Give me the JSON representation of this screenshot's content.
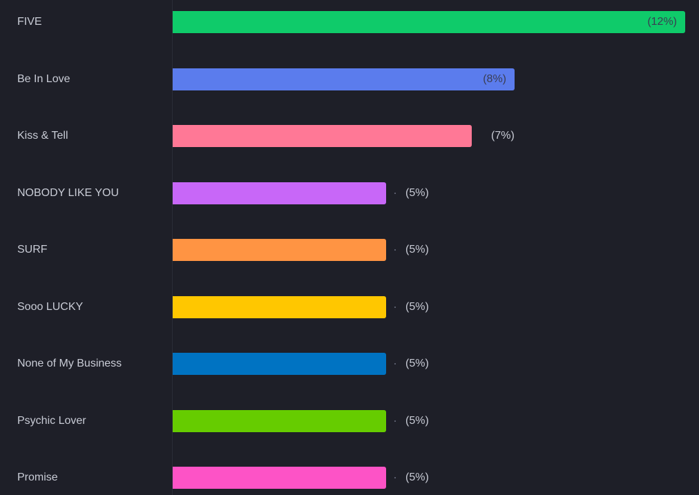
{
  "chart_data": {
    "type": "bar",
    "orientation": "horizontal",
    "categories": [
      "FIVE",
      "Be In Love",
      "Kiss & Tell",
      "NOBODY LIKE YOU",
      "SURF",
      "Sooo LUCKY",
      "None of My Business",
      "Psychic Lover",
      "Promise"
    ],
    "values": [
      12,
      8,
      7,
      5,
      5,
      5,
      5,
      5,
      5
    ],
    "value_labels": [
      "(12%)",
      "(8%)",
      "(7%)",
      "(5%)",
      "(5%)",
      "(5%)",
      "(5%)",
      "(5%)",
      "(5%)"
    ],
    "colors": [
      "#0fcb6a",
      "#5b7ced",
      "#ff7896",
      "#c867f8",
      "#ff9443",
      "#ffc700",
      "#0073c2",
      "#66cc00",
      "#fd53c6"
    ],
    "xlim": [
      0,
      12
    ],
    "grid": false,
    "legend": "none",
    "title": "",
    "xlabel": "",
    "ylabel": ""
  }
}
